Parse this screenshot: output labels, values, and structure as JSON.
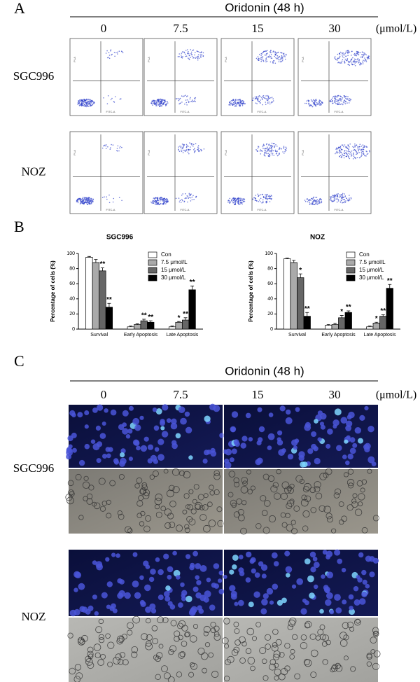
{
  "panel_a": {
    "label": "A",
    "header": "Oridonin (48 h)",
    "doses": [
      "0",
      "7.5",
      "15",
      "30"
    ],
    "unit": "(μmol/L)",
    "rows": [
      "SGC996",
      "NOZ"
    ],
    "x_axis": "FITC-A",
    "y_axis": "PI-A"
  },
  "panel_b": {
    "label": "B"
  },
  "chart_data": [
    {
      "type": "bar",
      "title": "SGC996",
      "ylabel": "Percentage of cells (%)",
      "categories": [
        "Survival",
        "Early Apoptosis",
        "Late Apoptosis"
      ],
      "ylim": [
        0,
        100
      ],
      "yticks": [
        0,
        20,
        40,
        60,
        80,
        100
      ],
      "series": [
        {
          "name": "Con",
          "color": "#ffffff",
          "values": [
            95,
            3,
            3
          ],
          "errors": [
            1,
            1,
            1
          ],
          "annotations": [
            null,
            null,
            null
          ]
        },
        {
          "name": "7.5 μmol/L",
          "color": "#aaaaaa",
          "values": [
            88,
            6,
            9
          ],
          "errors": [
            4,
            1,
            1
          ],
          "annotations": [
            null,
            null,
            "*"
          ]
        },
        {
          "name": "15 μmol/L",
          "color": "#666666",
          "values": [
            77,
            11,
            12
          ],
          "errors": [
            4,
            2,
            3
          ],
          "annotations": [
            "**",
            "**",
            "**"
          ]
        },
        {
          "name": "30 μmol/L",
          "color": "#000000",
          "values": [
            29,
            9,
            52
          ],
          "errors": [
            5,
            2,
            5
          ],
          "annotations": [
            "**",
            "**",
            "**"
          ]
        }
      ]
    },
    {
      "type": "bar",
      "title": "NOZ",
      "ylabel": "Percentage of cells (%)",
      "categories": [
        "Survival",
        "Early Apoptosis",
        "Late Apoptosis"
      ],
      "ylim": [
        0,
        100
      ],
      "yticks": [
        0,
        20,
        40,
        60,
        80,
        100
      ],
      "series": [
        {
          "name": "Con",
          "color": "#ffffff",
          "values": [
            93,
            5,
            3
          ],
          "errors": [
            1,
            1,
            1
          ],
          "annotations": [
            null,
            null,
            null
          ]
        },
        {
          "name": "7.5 μmol/L",
          "color": "#aaaaaa",
          "values": [
            88,
            6,
            8
          ],
          "errors": [
            3,
            2,
            1
          ],
          "annotations": [
            null,
            null,
            "*"
          ]
        },
        {
          "name": "15 μmol/L",
          "color": "#666666",
          "values": [
            68,
            15,
            17
          ],
          "errors": [
            5,
            3,
            2
          ],
          "annotations": [
            "*",
            "*",
            "**"
          ]
        },
        {
          "name": "30 μmol/L",
          "color": "#000000",
          "values": [
            17,
            22,
            54
          ],
          "errors": [
            5,
            2,
            5
          ],
          "annotations": [
            "**",
            "**",
            "**"
          ]
        }
      ]
    }
  ],
  "panel_c": {
    "label": "C",
    "header": "Oridonin (48 h)",
    "doses": [
      "0",
      "7.5",
      "15",
      "30"
    ],
    "unit": "(μmol/L)",
    "rows": [
      "SGC996",
      "NOZ"
    ]
  }
}
